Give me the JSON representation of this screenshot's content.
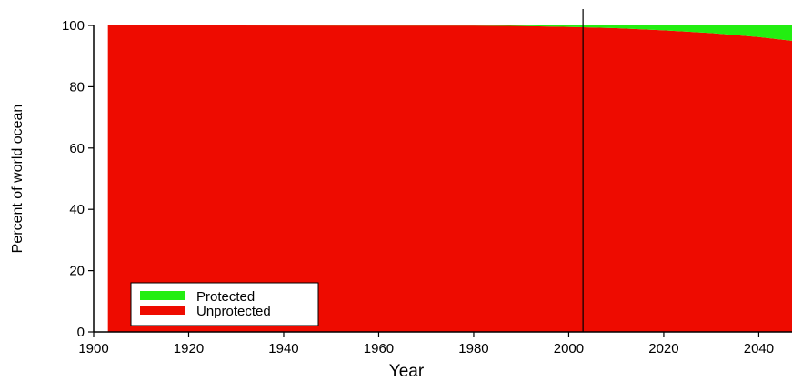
{
  "chart_data": {
    "type": "area",
    "stacked": true,
    "title": "",
    "xlabel": "Year",
    "ylabel": "Percent of world ocean",
    "xlim": [
      1900,
      2047
    ],
    "ylim": [
      0,
      100
    ],
    "x_ticks": [
      1900,
      1920,
      1940,
      1960,
      1980,
      2000,
      2020,
      2040
    ],
    "y_ticks": [
      0,
      20,
      40,
      60,
      80,
      100
    ],
    "data_start_year": 1903,
    "reference_line_x": 2003,
    "legend_position": "bottom-left",
    "grid": false,
    "series": [
      {
        "name": "Protected",
        "color": "#22ee11",
        "x": [
          1903,
          1980,
          1990,
          2000,
          2003,
          2010,
          2020,
          2030,
          2040,
          2047
        ],
        "values": [
          0,
          0.05,
          0.2,
          0.5,
          0.6,
          0.9,
          1.6,
          2.5,
          3.8,
          5.0
        ]
      },
      {
        "name": "Unprotected",
        "color": "#ee0b00",
        "x": [
          1903,
          1980,
          1990,
          2000,
          2003,
          2010,
          2020,
          2030,
          2040,
          2047
        ],
        "values": [
          100,
          99.95,
          99.8,
          99.5,
          99.4,
          99.1,
          98.4,
          97.5,
          96.2,
          95.0
        ]
      }
    ]
  }
}
